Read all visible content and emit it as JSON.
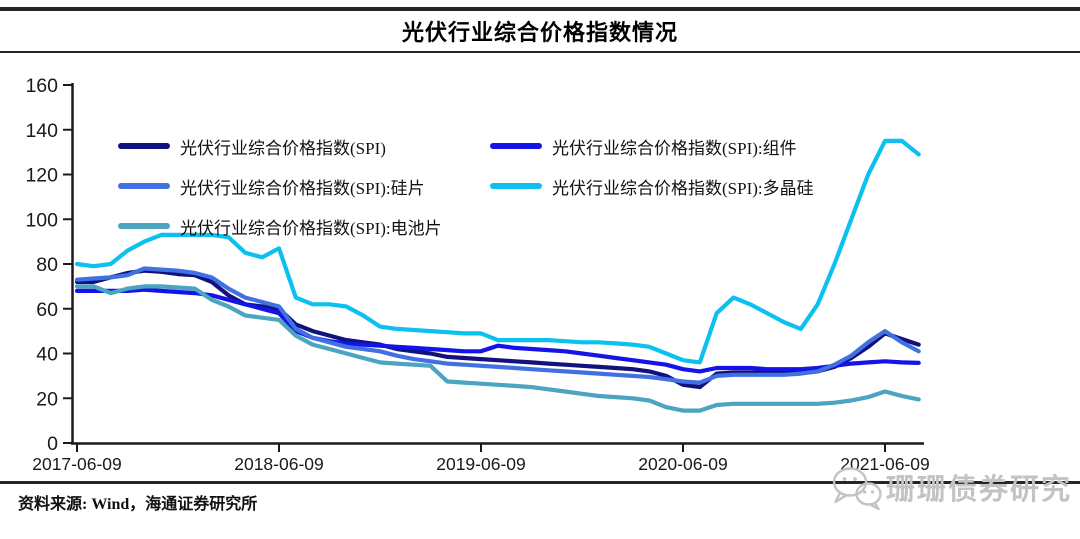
{
  "header": {
    "title": "光伏行业综合价格指数情况"
  },
  "footer": {
    "source_label": "资料来源: Wind，海通证券研究所"
  },
  "watermark": {
    "icon": "wechat-icon",
    "text": "珊珊债券研究"
  },
  "chart_data": {
    "type": "line",
    "title": "光伏行业综合价格指数情况",
    "xlabel": "",
    "ylabel": "",
    "ylim": [
      0,
      160
    ],
    "y_ticks": [
      0,
      20,
      40,
      60,
      80,
      100,
      120,
      140,
      160
    ],
    "grid": false,
    "legend_position": "top-left-inside",
    "x_unit": "months since 2017-06-09",
    "x_range": [
      0,
      50
    ],
    "x_tick_positions": [
      0,
      12,
      24,
      36,
      48
    ],
    "x_tick_labels": [
      "2017-06-09",
      "2018-06-09",
      "2019-06-09",
      "2020-06-09",
      "2021-06-09"
    ],
    "axis_color": "#1a1a1a",
    "series": [
      {
        "name": "光伏行业综合价格指数(SPI)",
        "color": "#12127e",
        "values": [
          72,
          72,
          74,
          76,
          77,
          76.5,
          75.5,
          75,
          72,
          66,
          62,
          61,
          60,
          53,
          50,
          48,
          46,
          45,
          44,
          42,
          41,
          40,
          38.5,
          38,
          37.5,
          37,
          36.5,
          36,
          35.5,
          35,
          34.5,
          34,
          33.5,
          33,
          32,
          30,
          26,
          25,
          31,
          31.5,
          31.5,
          31.5,
          31.5,
          31.5,
          32,
          34,
          38,
          43,
          49,
          46.5,
          44
        ]
      },
      {
        "name": "光伏行业综合价格指数(SPI):组件",
        "color": "#1414e8",
        "values": [
          68,
          68,
          68,
          68,
          68.5,
          68,
          67.5,
          67,
          66,
          64,
          62,
          60,
          58,
          50,
          47,
          45.5,
          44.5,
          44,
          43.5,
          43,
          42.5,
          42,
          41.5,
          41,
          41,
          43.5,
          42.5,
          42,
          41.5,
          41,
          40,
          39,
          38,
          37,
          36,
          35,
          33,
          32,
          33.5,
          33.5,
          33.5,
          33,
          33,
          33,
          33.5,
          34.5,
          35.5,
          36,
          36.5,
          36,
          35.8
        ]
      },
      {
        "name": "光伏行业综合价格指数(SPI):硅片",
        "color": "#4070e2",
        "values": [
          73,
          73.5,
          74,
          75,
          78,
          77.5,
          77,
          76,
          74,
          69,
          65,
          63,
          61,
          51,
          47,
          45,
          43,
          42,
          41,
          39,
          37.5,
          36.5,
          35.5,
          35,
          34.5,
          34,
          33.5,
          33,
          32.5,
          32,
          31.5,
          31,
          30.5,
          30,
          29.5,
          28.5,
          27.5,
          27,
          30,
          30.5,
          30.5,
          30.5,
          30.5,
          31,
          32,
          35,
          39,
          45,
          50,
          45,
          41
        ]
      },
      {
        "name": "光伏行业综合价格指数(SPI):多晶硅",
        "color": "#0cc0f0",
        "values": [
          80,
          79,
          80,
          86,
          90,
          93,
          93,
          93,
          93,
          92,
          85,
          83,
          87,
          65,
          62,
          62,
          61,
          57,
          52,
          51,
          50.5,
          50,
          49.5,
          49,
          49,
          46,
          46,
          46,
          46,
          45.5,
          45,
          45,
          44.5,
          44,
          43,
          40,
          37,
          36,
          58,
          65,
          62,
          58,
          54,
          51,
          62,
          80,
          100,
          120,
          135,
          135,
          129
        ]
      },
      {
        "name": "光伏行业综合价格指数(SPI):电池片",
        "color": "#4ba4c0",
        "values": [
          70,
          70,
          67,
          69,
          70,
          70,
          69.5,
          69,
          64,
          61,
          57,
          56,
          55,
          48,
          44,
          42,
          40,
          38,
          36,
          35.5,
          35,
          34.5,
          27.5,
          27,
          26.5,
          26,
          25.5,
          25,
          24,
          23,
          22,
          21,
          20.5,
          20,
          19,
          16,
          14.5,
          14.5,
          17,
          17.5,
          17.5,
          17.5,
          17.5,
          17.5,
          17.5,
          18,
          19,
          20.5,
          23,
          21,
          19.5
        ]
      }
    ]
  }
}
